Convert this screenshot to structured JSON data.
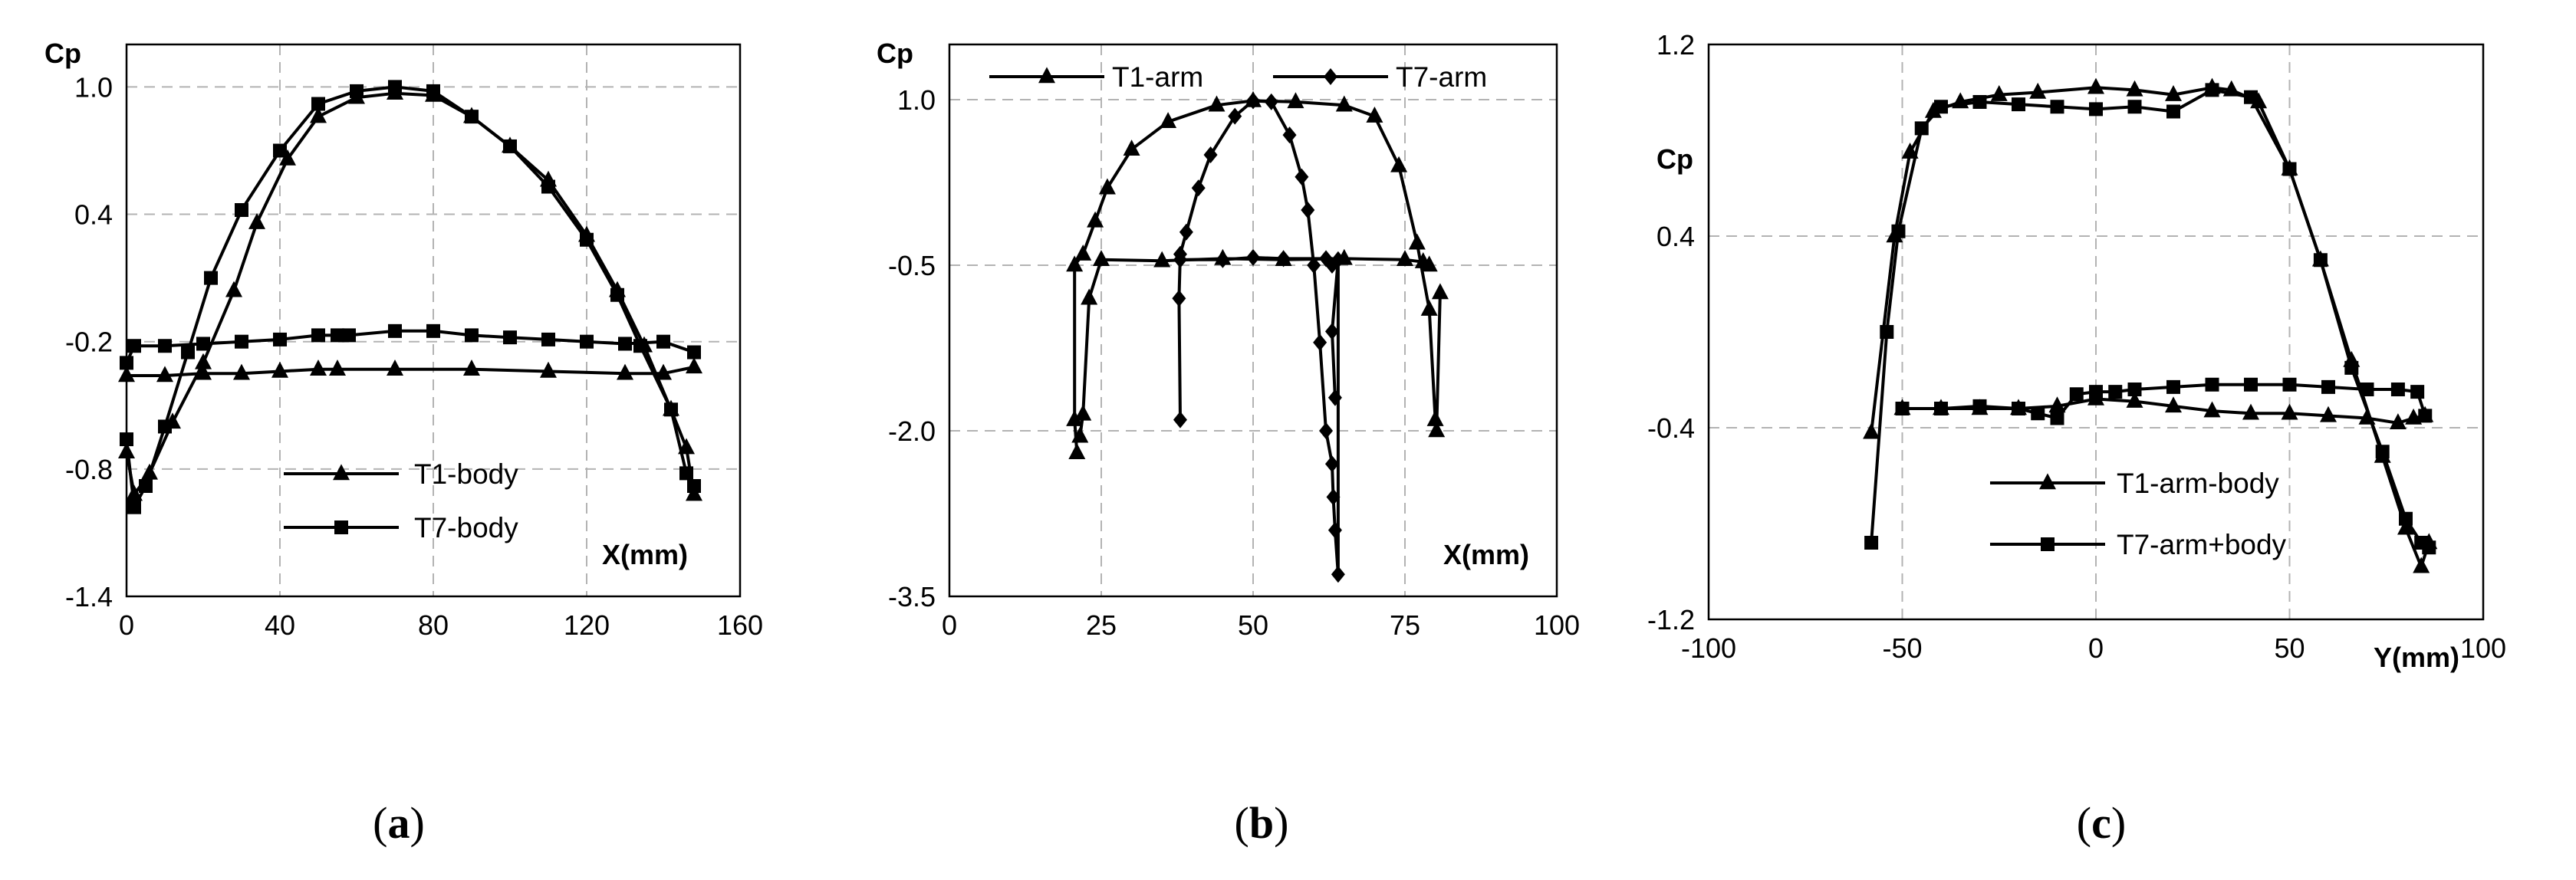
{
  "chart_data": [
    {
      "type": "line",
      "caption_letter": "a",
      "ylabel": "Cp",
      "xlabel": "X(mm)",
      "xlim": [
        0,
        160
      ],
      "ylim": [
        -1.4,
        1.2
      ],
      "xticks": [
        "0",
        "40",
        "80",
        "120",
        "160"
      ],
      "yticks": [
        "-1.4",
        "-0.8",
        "-0.2",
        "0.4",
        "1.0"
      ],
      "grid": true,
      "legend_position": "bottom-center",
      "series": [
        {
          "name": "T1-body",
          "marker": "triangle",
          "segments": [
            [
              [
                0,
                -0.72
              ],
              [
                2,
                -0.92
              ],
              [
                6,
                -0.82
              ],
              [
                12,
                -0.58
              ],
              [
                20,
                -0.3
              ],
              [
                28,
                0.04
              ],
              [
                34,
                0.36
              ],
              [
                42,
                0.66
              ],
              [
                50,
                0.86
              ],
              [
                60,
                0.95
              ],
              [
                70,
                0.97
              ],
              [
                80,
                0.96
              ],
              [
                90,
                0.86
              ],
              [
                100,
                0.72
              ],
              [
                110,
                0.56
              ],
              [
                120,
                0.3
              ],
              [
                128,
                0.04
              ],
              [
                135,
                -0.22
              ],
              [
                142,
                -0.52
              ],
              [
                146,
                -0.7
              ],
              [
                148,
                -0.92
              ]
            ],
            [
              [
                0,
                -0.36
              ],
              [
                10,
                -0.36
              ],
              [
                20,
                -0.35
              ],
              [
                30,
                -0.35
              ],
              [
                40,
                -0.34
              ],
              [
                50,
                -0.33
              ],
              [
                55,
                -0.33
              ],
              [
                70,
                -0.33
              ],
              [
                90,
                -0.33
              ],
              [
                110,
                -0.34
              ],
              [
                130,
                -0.35
              ],
              [
                140,
                -0.35
              ],
              [
                148,
                -0.32
              ]
            ]
          ]
        },
        {
          "name": "T7-body",
          "marker": "square",
          "segments": [
            [
              [
                0,
                -0.66
              ],
              [
                2,
                -0.98
              ],
              [
                5,
                -0.88
              ],
              [
                10,
                -0.6
              ],
              [
                16,
                -0.25
              ],
              [
                22,
                0.1
              ],
              [
                30,
                0.42
              ],
              [
                40,
                0.7
              ],
              [
                50,
                0.92
              ],
              [
                60,
                0.98
              ],
              [
                70,
                1.0
              ],
              [
                80,
                0.98
              ],
              [
                90,
                0.86
              ],
              [
                100,
                0.72
              ],
              [
                110,
                0.53
              ],
              [
                120,
                0.28
              ],
              [
                128,
                0.02
              ],
              [
                134,
                -0.22
              ],
              [
                142,
                -0.52
              ],
              [
                146,
                -0.82
              ],
              [
                148,
                -0.88
              ]
            ],
            [
              [
                0,
                -0.3
              ],
              [
                2,
                -0.22
              ],
              [
                10,
                -0.22
              ],
              [
                20,
                -0.21
              ],
              [
                30,
                -0.2
              ],
              [
                40,
                -0.19
              ],
              [
                50,
                -0.17
              ],
              [
                55,
                -0.17
              ],
              [
                58,
                -0.17
              ],
              [
                70,
                -0.15
              ],
              [
                80,
                -0.15
              ],
              [
                90,
                -0.17
              ],
              [
                100,
                -0.18
              ],
              [
                110,
                -0.19
              ],
              [
                120,
                -0.2
              ],
              [
                130,
                -0.21
              ],
              [
                140,
                -0.2
              ],
              [
                148,
                -0.25
              ]
            ]
          ]
        }
      ]
    },
    {
      "type": "line",
      "caption_letter": "b",
      "ylabel": "Cp",
      "xlabel": "X(mm)",
      "xlim": [
        0,
        100
      ],
      "ylim": [
        -3.5,
        1.5
      ],
      "xticks": [
        "0",
        "25",
        "50",
        "75",
        "100"
      ],
      "yticks": [
        "-3.5",
        "-2.0",
        "-0.5",
        "1.0"
      ],
      "grid": true,
      "legend_position": "top",
      "series": [
        {
          "name": "T1-arm",
          "marker": "triangle",
          "segments": [
            [
              [
                21,
                -2.2
              ],
              [
                20.6,
                -1.9
              ],
              [
                20.6,
                -0.5
              ],
              [
                22,
                -0.4
              ],
              [
                24,
                -0.1
              ],
              [
                26,
                0.2
              ],
              [
                30,
                0.55
              ],
              [
                36,
                0.8
              ],
              [
                44,
                0.95
              ],
              [
                50,
                0.99
              ],
              [
                57,
                0.98
              ],
              [
                65,
                0.95
              ],
              [
                70,
                0.85
              ],
              [
                74,
                0.4
              ],
              [
                77,
                -0.3
              ],
              [
                79,
                -0.9
              ],
              [
                80,
                -1.9
              ],
              [
                80.2,
                -2.0
              ],
              [
                80.8,
                -0.75
              ]
            ],
            [
              [
                21.5,
                -2.05
              ],
              [
                22,
                -1.85
              ],
              [
                23,
                -0.8
              ],
              [
                25,
                -0.45
              ],
              [
                35,
                -0.46
              ],
              [
                45,
                -0.44
              ],
              [
                55,
                -0.45
              ],
              [
                65,
                -0.44
              ],
              [
                75,
                -0.45
              ],
              [
                78,
                -0.47
              ],
              [
                79,
                -0.5
              ]
            ]
          ]
        },
        {
          "name": "T7-arm",
          "marker": "diamond",
          "segments": [
            [
              [
                38,
                -1.9
              ],
              [
                37.8,
                -0.8
              ],
              [
                38,
                -0.4
              ],
              [
                39,
                -0.2
              ],
              [
                41,
                0.2
              ],
              [
                43,
                0.5
              ],
              [
                47,
                0.85
              ],
              [
                50,
                0.99
              ],
              [
                53,
                0.98
              ],
              [
                56,
                0.68
              ],
              [
                58,
                0.3
              ],
              [
                59,
                0.0
              ],
              [
                60,
                -0.5
              ],
              [
                61,
                -1.2
              ],
              [
                62,
                -2.0
              ],
              [
                63,
                -2.3
              ],
              [
                63.2,
                -2.6
              ],
              [
                63.5,
                -2.9
              ],
              [
                64,
                -3.3
              ],
              [
                64,
                -0.45
              ],
              [
                63,
                -1.1
              ],
              [
                63.5,
                -1.7
              ]
            ],
            [
              [
                38,
                -0.45
              ],
              [
                45,
                -0.45
              ],
              [
                50,
                -0.43
              ],
              [
                55,
                -0.44
              ],
              [
                62,
                -0.44
              ],
              [
                63,
                -0.5
              ]
            ]
          ]
        }
      ]
    },
    {
      "type": "line",
      "caption_letter": "c",
      "ylabel": "Cp",
      "xlabel": "Y(mm)",
      "xlim": [
        -100,
        100
      ],
      "ylim": [
        -1.2,
        1.2
      ],
      "xticks": [
        "-100",
        "-50",
        "0",
        "50",
        "100"
      ],
      "yticks": [
        "-1.2",
        "-0.4",
        "0.4",
        "1.2"
      ],
      "grid": true,
      "legend_position": "bottom-left",
      "series": [
        {
          "name": "T1-arm-body",
          "marker": "triangle",
          "segments": [
            [
              [
                -58,
                -0.42
              ],
              [
                -52,
                0.4
              ],
              [
                -48,
                0.75
              ],
              [
                -42,
                0.92
              ],
              [
                -35,
                0.96
              ],
              [
                -25,
                0.99
              ],
              [
                -15,
                1.0
              ],
              [
                0,
                1.02
              ],
              [
                10,
                1.01
              ],
              [
                20,
                0.99
              ],
              [
                30,
                1.02
              ],
              [
                35,
                1.01
              ],
              [
                42,
                0.96
              ],
              [
                50,
                0.68
              ],
              [
                58,
                0.3
              ],
              [
                66,
                -0.12
              ],
              [
                74,
                -0.52
              ],
              [
                80,
                -0.82
              ],
              [
                84,
                -0.98
              ],
              [
                86,
                -0.88
              ]
            ],
            [
              [
                -50,
                -0.32
              ],
              [
                -40,
                -0.32
              ],
              [
                -30,
                -0.32
              ],
              [
                -20,
                -0.32
              ],
              [
                -10,
                -0.31
              ],
              [
                0,
                -0.28
              ],
              [
                10,
                -0.29
              ],
              [
                20,
                -0.31
              ],
              [
                30,
                -0.33
              ],
              [
                40,
                -0.34
              ],
              [
                50,
                -0.34
              ],
              [
                60,
                -0.35
              ],
              [
                70,
                -0.36
              ],
              [
                78,
                -0.38
              ],
              [
                82,
                -0.36
              ],
              [
                85,
                -0.35
              ]
            ]
          ]
        },
        {
          "name": "T7-arm+body",
          "marker": "square",
          "segments": [
            [
              [
                -58,
                -0.88
              ],
              [
                -54,
                0.0
              ],
              [
                -51,
                0.42
              ],
              [
                -45,
                0.85
              ],
              [
                -40,
                0.94
              ],
              [
                -30,
                0.96
              ],
              [
                -20,
                0.95
              ],
              [
                -10,
                0.94
              ],
              [
                0,
                0.93
              ],
              [
                10,
                0.94
              ],
              [
                20,
                0.92
              ],
              [
                30,
                1.01
              ],
              [
                40,
                0.98
              ],
              [
                50,
                0.68
              ],
              [
                58,
                0.3
              ],
              [
                66,
                -0.15
              ],
              [
                74,
                -0.5
              ],
              [
                80,
                -0.78
              ],
              [
                84,
                -0.88
              ],
              [
                86,
                -0.9
              ]
            ],
            [
              [
                -50,
                -0.32
              ],
              [
                -40,
                -0.32
              ],
              [
                -30,
                -0.31
              ],
              [
                -20,
                -0.32
              ],
              [
                -15,
                -0.34
              ],
              [
                -10,
                -0.36
              ],
              [
                -5,
                -0.26
              ],
              [
                0,
                -0.25
              ],
              [
                5,
                -0.25
              ],
              [
                10,
                -0.24
              ],
              [
                20,
                -0.23
              ],
              [
                30,
                -0.22
              ],
              [
                40,
                -0.22
              ],
              [
                50,
                -0.22
              ],
              [
                60,
                -0.23
              ],
              [
                70,
                -0.24
              ],
              [
                78,
                -0.24
              ],
              [
                83,
                -0.25
              ],
              [
                85,
                -0.35
              ]
            ]
          ]
        }
      ]
    }
  ]
}
